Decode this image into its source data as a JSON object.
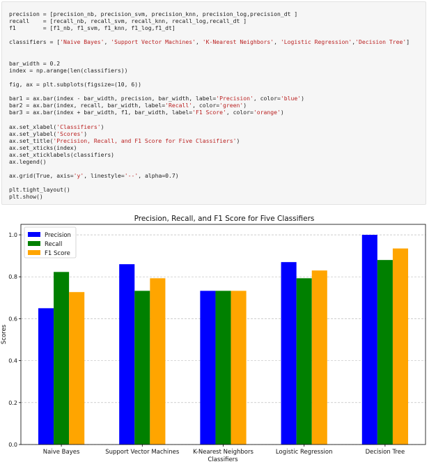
{
  "code_cell": {
    "lines": [
      "precision = [precision_nb, precision_svm, precision_knn, precision_log,precision_dt ]",
      "recall    = [recall_nb, recall_svm, recall_knn, recall_log,recall_dt ]",
      "f1        = [f1_nb, f1_svm, f1_knn, f1_log,f1_dt]",
      "",
      "classifiers = ['Naive Bayes', 'Support Vector Machines', 'K-Nearest Neighbors', 'Logistic Regression','Decision Tree']",
      "",
      "",
      "bar_width = 0.2",
      "index = np.arange(len(classifiers))",
      "",
      "fig, ax = plt.subplots(figsize=(10, 6))",
      "",
      "bar1 = ax.bar(index - bar_width, precision, bar_width, label='Precision', color='blue')",
      "bar2 = ax.bar(index, recall, bar_width, label='Recall', color='green')",
      "bar3 = ax.bar(index + bar_width, f1, bar_width, label='F1 Score', color='orange')",
      "",
      "ax.set_xlabel('Classifiers')",
      "ax.set_ylabel('Scores')",
      "ax.set_title('Precision, Recall, and F1 Score for Five Classifiers')",
      "ax.set_xticks(index)",
      "ax.set_xticklabels(classifiers)",
      "ax.legend()",
      "",
      "ax.grid(True, axis='y', linestyle='--', alpha=0.7)",
      "",
      "plt.tight_layout()",
      "plt.show()"
    ]
  },
  "chart_data": {
    "type": "bar",
    "title": "Precision, Recall, and F1 Score for Five Classifiers",
    "xlabel": "Classifiers",
    "ylabel": "Scores",
    "categories": [
      "Naive Bayes",
      "Support Vector Machines",
      "K-Nearest Neighbors",
      "Logistic Regression",
      "Decision Tree"
    ],
    "series": [
      {
        "name": "Precision",
        "color": "#0000ff",
        "values": [
          0.65,
          0.86,
          0.733,
          0.87,
          1.0
        ]
      },
      {
        "name": "Recall",
        "color": "#008000",
        "values": [
          0.823,
          0.733,
          0.733,
          0.793,
          0.88
        ]
      },
      {
        "name": "F1 Score",
        "color": "#ffa500",
        "values": [
          0.727,
          0.793,
          0.733,
          0.83,
          0.935
        ]
      }
    ],
    "ylim": [
      0,
      1.05
    ],
    "yticks": [
      0.0,
      0.2,
      0.4,
      0.6,
      0.8,
      1.0
    ],
    "ytick_labels": [
      "0.0",
      "0.2",
      "0.4",
      "0.6",
      "0.8",
      "1.0"
    ],
    "grid": "y-dashed",
    "legend_position": "top-left"
  }
}
